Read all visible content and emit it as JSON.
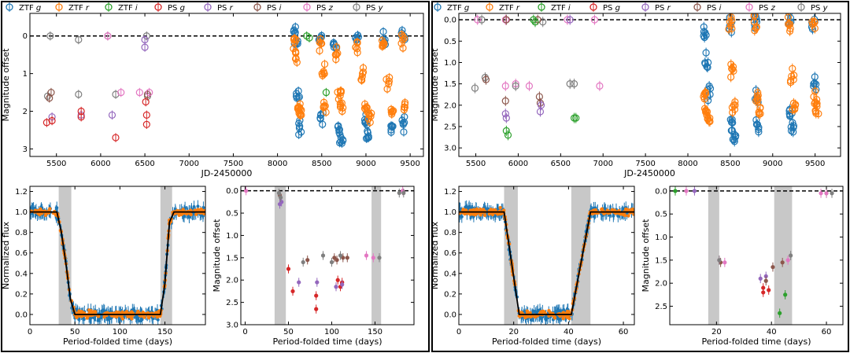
{
  "legend": [
    {
      "label": "ZTF g",
      "color": "#1f77b4"
    },
    {
      "label": "ZTF r",
      "color": "#ff7f0e"
    },
    {
      "label": "ZTF i",
      "color": "#2ca02c"
    },
    {
      "label": "PS g",
      "color": "#d62728"
    },
    {
      "label": "PS r",
      "color": "#9467bd"
    },
    {
      "label": "PS i",
      "color": "#8c564b"
    },
    {
      "label": "PS z",
      "color": "#e377c2"
    },
    {
      "label": "PS y",
      "color": "#7f7f7f"
    }
  ],
  "chart_data": [
    {
      "id": "left-top",
      "type": "scatter",
      "xlabel": "JD-2450000",
      "ylabel": "Magnitude offset",
      "xlim": [
        5200,
        9650
      ],
      "ylim": [
        3.2,
        -0.6
      ],
      "inverted_y": true,
      "xticks": [
        5500,
        6000,
        6500,
        7000,
        7500,
        8000,
        8500,
        9000,
        9500
      ],
      "yticks": [
        0,
        1,
        2,
        3
      ],
      "ytick_labels": [
        "0",
        "1",
        "2",
        "3"
      ],
      "reference_line": 0,
      "series": [
        {
          "name": "PS y",
          "points": [
            [
              5430,
              0
            ],
            [
              5750,
              0.1
            ],
            [
              6080,
              0
            ],
            [
              6520,
              0
            ],
            [
              5400,
              1.6
            ],
            [
              5750,
              1.55
            ],
            [
              6170,
              1.55
            ],
            [
              6530,
              1.6
            ]
          ]
        },
        {
          "name": "PS i",
          "points": [
            [
              5440,
              1.5
            ],
            [
              6530,
              1.55
            ],
            [
              5420,
              1.65
            ]
          ]
        },
        {
          "name": "PS z",
          "points": [
            [
              6080,
              0
            ],
            [
              6230,
              1.5
            ],
            [
              6440,
              1.5
            ],
            [
              6550,
              1.5
            ]
          ]
        },
        {
          "name": "PS r",
          "points": [
            [
              5450,
              2.15
            ],
            [
              5780,
              2.1
            ],
            [
              6130,
              2.1
            ],
            [
              6500,
              0.3
            ],
            [
              6500,
              0.1
            ]
          ]
        },
        {
          "name": "PS g",
          "points": [
            [
              5390,
              2.3
            ],
            [
              5450,
              2.25
            ],
            [
              5780,
              2.0
            ],
            [
              5780,
              2.15
            ],
            [
              6170,
              2.7
            ],
            [
              6510,
              1.75
            ],
            [
              6520,
              2.1
            ],
            [
              6520,
              2.35
            ]
          ]
        },
        {
          "name": "ZTF i",
          "points": [
            [
              8330,
              0
            ],
            [
              8360,
              0.05
            ],
            [
              8550,
              1.5
            ]
          ]
        },
        {
          "name": "ZTF g",
          "points": [
            [
              8200,
              -0.1
            ],
            [
              8210,
              0.2
            ],
            [
              8230,
              1.6
            ],
            [
              8250,
              2.4
            ],
            [
              8480,
              0.1
            ],
            [
              8500,
              2.2
            ],
            [
              8650,
              0.3
            ],
            [
              8700,
              2.5
            ],
            [
              8720,
              2.7
            ],
            [
              8900,
              0.1
            ],
            [
              9000,
              2.3
            ],
            [
              9020,
              2.7
            ],
            [
              9200,
              0.1
            ],
            [
              9300,
              2.4
            ],
            [
              9420,
              0
            ],
            [
              9430,
              2.35
            ]
          ]
        },
        {
          "name": "ZTF r",
          "points": [
            [
              8200,
              0.1
            ],
            [
              8220,
              0.6
            ],
            [
              8240,
              1.9
            ],
            [
              8260,
              2.1
            ],
            [
              8480,
              0.2
            ],
            [
              8520,
              1.0
            ],
            [
              8540,
              1.9
            ],
            [
              8660,
              0.5
            ],
            [
              8700,
              1.5
            ],
            [
              8720,
              2.0
            ],
            [
              8900,
              0.3
            ],
            [
              8950,
              1.0
            ],
            [
              9000,
              1.9
            ],
            [
              9050,
              2.2
            ],
            [
              9200,
              0.2
            ],
            [
              9250,
              1.2
            ],
            [
              9300,
              1.95
            ],
            [
              9420,
              0.1
            ],
            [
              9440,
              1.9
            ]
          ]
        }
      ]
    },
    {
      "id": "left-bottom-flux",
      "type": "scatter",
      "xlabel": "Period-folded time (days)",
      "ylabel": "Normalized flux",
      "xlim": [
        0,
        195
      ],
      "ylim": [
        -0.1,
        1.25
      ],
      "xticks": [
        0,
        50,
        100,
        150
      ],
      "yticks": [
        0.0,
        0.2,
        0.4,
        0.6,
        0.8,
        1.0,
        1.2
      ],
      "ytick_labels": [
        "0.0",
        "0.2",
        "0.4",
        "0.6",
        "0.8",
        "1.0",
        "1.2"
      ],
      "shaded_spans": [
        [
          32,
          46
        ],
        [
          145,
          158
        ]
      ],
      "model_curve": [
        [
          0,
          1.0
        ],
        [
          30,
          1.0
        ],
        [
          35,
          0.8
        ],
        [
          40,
          0.5
        ],
        [
          45,
          0.15
        ],
        [
          50,
          0.0
        ],
        [
          145,
          0.0
        ],
        [
          150,
          0.3
        ],
        [
          155,
          0.9
        ],
        [
          160,
          1.0
        ],
        [
          195,
          1.0
        ]
      ]
    },
    {
      "id": "left-bottom-mag",
      "type": "scatter",
      "xlabel": "Period-folded time (days)",
      "ylabel": "Magnitude offset",
      "xlim": [
        -5,
        195
      ],
      "ylim": [
        3.0,
        -0.1
      ],
      "inverted_y": true,
      "xticks": [
        0,
        50,
        100,
        150
      ],
      "yticks": [
        0.0,
        0.5,
        1.0,
        1.5,
        2.0,
        2.5,
        3.0
      ],
      "ytick_labels": [
        "0.0",
        "0.5",
        "1.0",
        "1.5",
        "2.0",
        "2.5",
        "3.0"
      ],
      "shaded_spans": [
        [
          34,
          47
        ],
        [
          146,
          157
        ]
      ],
      "reference_line": 0,
      "series": [
        {
          "name": "PS g",
          "points": [
            [
              50,
              1.75
            ],
            [
              55,
              2.25
            ],
            [
              82,
              2.65
            ],
            [
              82,
              2.35
            ],
            [
              107,
              2.0
            ],
            [
              110,
              2.15
            ],
            [
              112,
              2.05
            ]
          ]
        },
        {
          "name": "PS r",
          "points": [
            [
              40,
              0.3
            ],
            [
              42,
              0.25
            ],
            [
              62,
              2.05
            ],
            [
              83,
              2.05
            ],
            [
              105,
              2.15
            ],
            [
              112,
              2.1
            ]
          ]
        },
        {
          "name": "PS i",
          "points": [
            [
              40,
              0.1
            ],
            [
              72,
              1.55
            ],
            [
              103,
              1.5
            ],
            [
              106,
              1.55
            ],
            [
              113,
              1.5
            ],
            [
              118,
              1.5
            ]
          ]
        },
        {
          "name": "PS z",
          "points": [
            [
              1,
              0.0
            ],
            [
              140,
              1.45
            ],
            [
              148,
              1.5
            ],
            [
              182,
              0.0
            ]
          ]
        },
        {
          "name": "PS y",
          "points": [
            [
              39,
              0.05
            ],
            [
              41,
              0.15
            ],
            [
              67,
              1.6
            ],
            [
              90,
              1.45
            ],
            [
              100,
              1.6
            ],
            [
              110,
              1.45
            ],
            [
              155,
              1.5
            ],
            [
              178,
              0.05
            ],
            [
              183,
              0.05
            ]
          ]
        }
      ]
    },
    {
      "id": "right-top",
      "type": "scatter",
      "xlabel": "JD-2450000",
      "ylabel": "Magnitude offset",
      "xlim": [
        5300,
        9800
      ],
      "ylim": [
        3.2,
        -0.15
      ],
      "inverted_y": true,
      "xticks": [
        5500,
        6000,
        6500,
        7000,
        7500,
        8000,
        8500,
        9000,
        9500
      ],
      "yticks": [
        0.0,
        0.5,
        1.0,
        1.5,
        2.0,
        2.5,
        3.0
      ],
      "ytick_labels": [
        "0.0",
        "0.5",
        "1.0",
        "1.5",
        "2.0",
        "2.5",
        "3.0"
      ],
      "reference_line": 0,
      "series": [
        {
          "name": "PS z",
          "points": [
            [
              5520,
              0
            ],
            [
              5850,
              0
            ],
            [
              6580,
              0
            ],
            [
              6900,
              0
            ],
            [
              5850,
              1.55
            ],
            [
              5970,
              1.5
            ],
            [
              6130,
              1.55
            ],
            [
              6960,
              1.55
            ]
          ]
        },
        {
          "name": "PS y",
          "points": [
            [
              5570,
              0
            ],
            [
              6290,
              0.05
            ],
            [
              5490,
              1.6
            ],
            [
              5610,
              1.35
            ],
            [
              5970,
              1.55
            ],
            [
              6610,
              1.5
            ],
            [
              6660,
              1.5
            ]
          ]
        },
        {
          "name": "PS i",
          "points": [
            [
              5860,
              0
            ],
            [
              6230,
              0
            ],
            [
              5620,
              1.4
            ],
            [
              5850,
              1.9
            ],
            [
              6250,
              1.8
            ],
            [
              6260,
              1.95
            ]
          ]
        },
        {
          "name": "PS r",
          "points": [
            [
              6610,
              0
            ],
            [
              5850,
              2.2
            ],
            [
              5860,
              2.3
            ],
            [
              6260,
              2.15
            ],
            [
              6270,
              2.0
            ]
          ]
        },
        {
          "name": "ZTF i",
          "points": [
            [
              6180,
              0
            ],
            [
              6200,
              0.05
            ],
            [
              5860,
              2.6
            ],
            [
              5880,
              2.7
            ],
            [
              6660,
              2.3
            ],
            [
              6680,
              2.3
            ]
          ]
        },
        {
          "name": "ZTF g",
          "points": [
            [
              8200,
              0.3
            ],
            [
              8220,
              1.0
            ],
            [
              8250,
              1.75
            ],
            [
              8500,
              0.05
            ],
            [
              8520,
              2.4
            ],
            [
              8550,
              2.8
            ],
            [
              8800,
              0.05
            ],
            [
              8810,
              1.8
            ],
            [
              8820,
              2.45
            ],
            [
              9200,
              0.05
            ],
            [
              9210,
              2.2
            ],
            [
              9230,
              2.6
            ],
            [
              9480,
              0.05
            ],
            [
              9500,
              1.5
            ]
          ]
        },
        {
          "name": "ZTF r",
          "points": [
            [
              8200,
              1.7
            ],
            [
              8220,
              2.15
            ],
            [
              8240,
              2.3
            ],
            [
              8500,
              0.05
            ],
            [
              8520,
              1.2
            ],
            [
              8540,
              2.0
            ],
            [
              8800,
              0.05
            ],
            [
              8820,
              1.8
            ],
            [
              8850,
              2.2
            ],
            [
              9200,
              0.1
            ],
            [
              9230,
              1.4
            ],
            [
              9250,
              2.0
            ],
            [
              9480,
              0.1
            ],
            [
              9500,
              1.8
            ],
            [
              9520,
              2.15
            ]
          ]
        }
      ]
    },
    {
      "id": "right-bottom-flux",
      "type": "scatter",
      "xlabel": "Period-folded time (days)",
      "ylabel": "Normalized flux",
      "xlim": [
        0,
        64
      ],
      "ylim": [
        -0.1,
        1.25
      ],
      "xticks": [
        0,
        20,
        40,
        60
      ],
      "yticks": [
        0.0,
        0.2,
        0.4,
        0.6,
        0.8,
        1.0,
        1.2
      ],
      "ytick_labels": [
        "0.0",
        "0.2",
        "0.4",
        "0.6",
        "0.8",
        "1.0",
        "1.2"
      ],
      "shaded_spans": [
        [
          16.5,
          21.5
        ],
        [
          41,
          48
        ]
      ],
      "model_curve": [
        [
          0,
          1.0
        ],
        [
          16.5,
          1.0
        ],
        [
          22,
          0.0
        ],
        [
          41,
          0.0
        ],
        [
          48,
          1.0
        ],
        [
          64,
          1.0
        ]
      ]
    },
    {
      "id": "right-bottom-mag",
      "type": "scatter",
      "xlabel": "Period-folded time (days)",
      "ylabel": "Magnitude offset",
      "xlim": [
        3,
        66
      ],
      "ylim": [
        2.9,
        -0.1
      ],
      "inverted_y": true,
      "xticks": [
        20,
        40,
        60
      ],
      "yticks": [
        0.0,
        0.5,
        1.0,
        1.5,
        2.0,
        2.5
      ],
      "ytick_labels": [
        "0.0",
        "0.5",
        "1.0",
        "1.5",
        "2.0",
        "2.5"
      ],
      "shaded_spans": [
        [
          17,
          21
        ],
        [
          41,
          47.5
        ]
      ],
      "reference_line": 0,
      "series": [
        {
          "name": "ZTF i",
          "points": [
            [
              5,
              0
            ],
            [
              43,
              2.65
            ],
            [
              45,
              2.25
            ],
            [
              60,
              0.05
            ]
          ]
        },
        {
          "name": "PS g",
          "points": [
            [
              37,
              2.2
            ],
            [
              37,
              2.1
            ],
            [
              39,
              2.15
            ]
          ]
        },
        {
          "name": "PS r",
          "points": [
            [
              12,
              0.0
            ],
            [
              36,
              1.9
            ],
            [
              38,
              1.85
            ]
          ]
        },
        {
          "name": "PS i",
          "points": [
            [
              21.5,
              1.55
            ],
            [
              38,
              1.95
            ],
            [
              40.5,
              1.65
            ],
            [
              44,
              1.55
            ]
          ]
        },
        {
          "name": "PS z",
          "points": [
            [
              9,
              0
            ],
            [
              21,
              1.5
            ],
            [
              23,
              1.55
            ],
            [
              46,
              1.5
            ],
            [
              58,
              0.05
            ],
            [
              60,
              0.05
            ]
          ]
        },
        {
          "name": "PS y",
          "points": [
            [
              47,
              1.4
            ],
            [
              62,
              0.05
            ],
            [
              21,
              1.5
            ]
          ]
        }
      ]
    }
  ]
}
